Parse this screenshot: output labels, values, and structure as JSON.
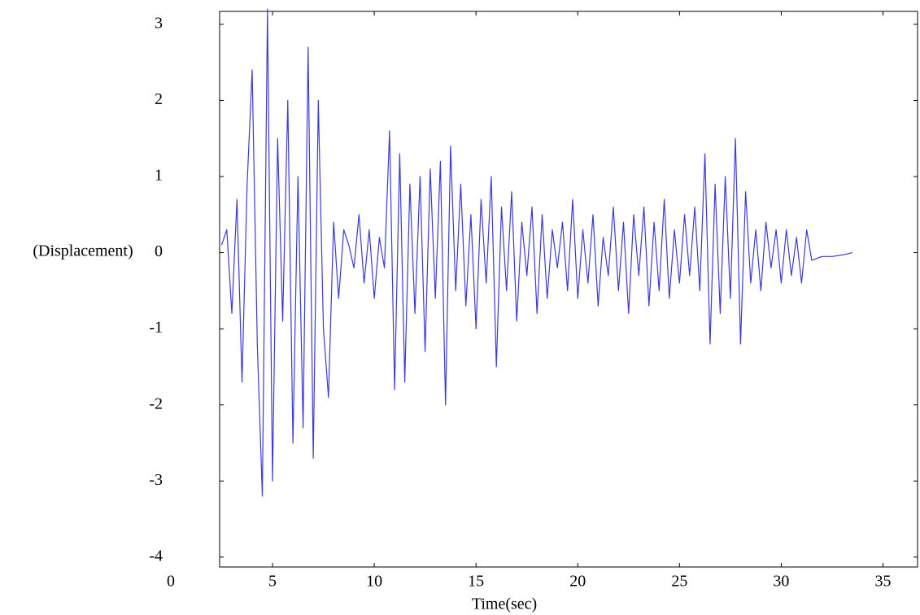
{
  "chart_data": {
    "type": "line",
    "x_label": "Time(sec)",
    "y_label": "(Displacement)",
    "x": [
      2.5,
      2.75,
      3,
      3.25,
      3.5,
      3.75,
      4,
      4.25,
      4.5,
      4.75,
      5,
      5.25,
      5.5,
      5.75,
      6,
      6.25,
      6.5,
      6.75,
      7,
      7.25,
      7.5,
      7.75,
      8,
      8.25,
      8.5,
      8.75,
      9,
      9.25,
      9.5,
      9.75,
      10,
      10.25,
      10.5,
      10.75,
      11,
      11.25,
      11.5,
      11.75,
      12,
      12.25,
      12.5,
      12.75,
      13,
      13.25,
      13.5,
      13.75,
      14,
      14.25,
      14.5,
      14.75,
      15,
      15.25,
      15.5,
      15.75,
      16,
      16.25,
      16.5,
      16.75,
      17,
      17.25,
      17.5,
      17.75,
      18,
      18.25,
      18.5,
      18.75,
      19,
      19.25,
      19.5,
      19.75,
      20,
      20.25,
      20.5,
      20.75,
      21,
      21.25,
      21.5,
      21.75,
      22,
      22.25,
      22.5,
      22.75,
      23,
      23.25,
      23.5,
      23.75,
      24,
      24.25,
      24.5,
      24.75,
      25,
      25.25,
      25.5,
      25.75,
      26,
      26.25,
      26.5,
      26.75,
      27,
      27.25,
      27.5,
      27.75,
      28,
      28.25,
      28.5,
      28.75,
      29,
      29.25,
      29.5,
      29.75,
      30,
      30.25,
      30.5,
      30.75,
      31,
      31.25,
      31.5,
      32,
      32.5,
      33,
      33.5
    ],
    "series": [
      {
        "color": "#3a3ad8",
        "values": [
          0.1,
          0.3,
          -0.8,
          0.7,
          -1.7,
          0.9,
          2.4,
          -1.2,
          -3.2,
          3.2,
          -3.0,
          1.5,
          -0.9,
          2.0,
          -2.5,
          1.0,
          -2.3,
          2.7,
          -2.7,
          2.0,
          -1.0,
          -1.9,
          0.4,
          -0.6,
          0.3,
          0.1,
          -0.2,
          0.5,
          -0.4,
          0.3,
          -0.6,
          0.2,
          -0.2,
          1.6,
          -1.8,
          1.3,
          -1.7,
          0.9,
          -0.8,
          1.0,
          -1.3,
          1.1,
          -0.6,
          1.2,
          -2.0,
          1.4,
          -0.5,
          0.9,
          -0.7,
          0.5,
          -1.0,
          0.7,
          -0.4,
          1.0,
          -1.5,
          0.6,
          -0.5,
          0.8,
          -0.9,
          0.4,
          -0.3,
          0.6,
          -0.8,
          0.5,
          -0.6,
          0.3,
          -0.2,
          0.4,
          -0.5,
          0.7,
          -0.6,
          0.3,
          -0.4,
          0.5,
          -0.7,
          0.2,
          -0.3,
          0.6,
          -0.5,
          0.4,
          -0.8,
          0.5,
          -0.3,
          0.6,
          -0.7,
          0.4,
          -0.5,
          0.7,
          -0.6,
          0.3,
          -0.4,
          0.5,
          -0.3,
          0.6,
          -0.5,
          1.3,
          -1.2,
          0.9,
          -0.8,
          1.0,
          -0.6,
          1.5,
          -1.2,
          0.8,
          -0.4,
          0.3,
          -0.5,
          0.4,
          -0.2,
          0.3,
          -0.4,
          0.3,
          -0.3,
          0.2,
          -0.4,
          0.3,
          -0.1,
          -0.05,
          -0.05,
          -0.03,
          0.0
        ]
      }
    ],
    "xlim": [
      2.4,
      36.7
    ],
    "xticks": [
      0,
      5,
      10,
      15,
      20,
      25,
      30,
      35
    ],
    "ylim": [
      -4.13,
      3.17
    ],
    "yticks": [
      -4,
      -3,
      -2,
      -1,
      0,
      1,
      2,
      3
    ]
  }
}
